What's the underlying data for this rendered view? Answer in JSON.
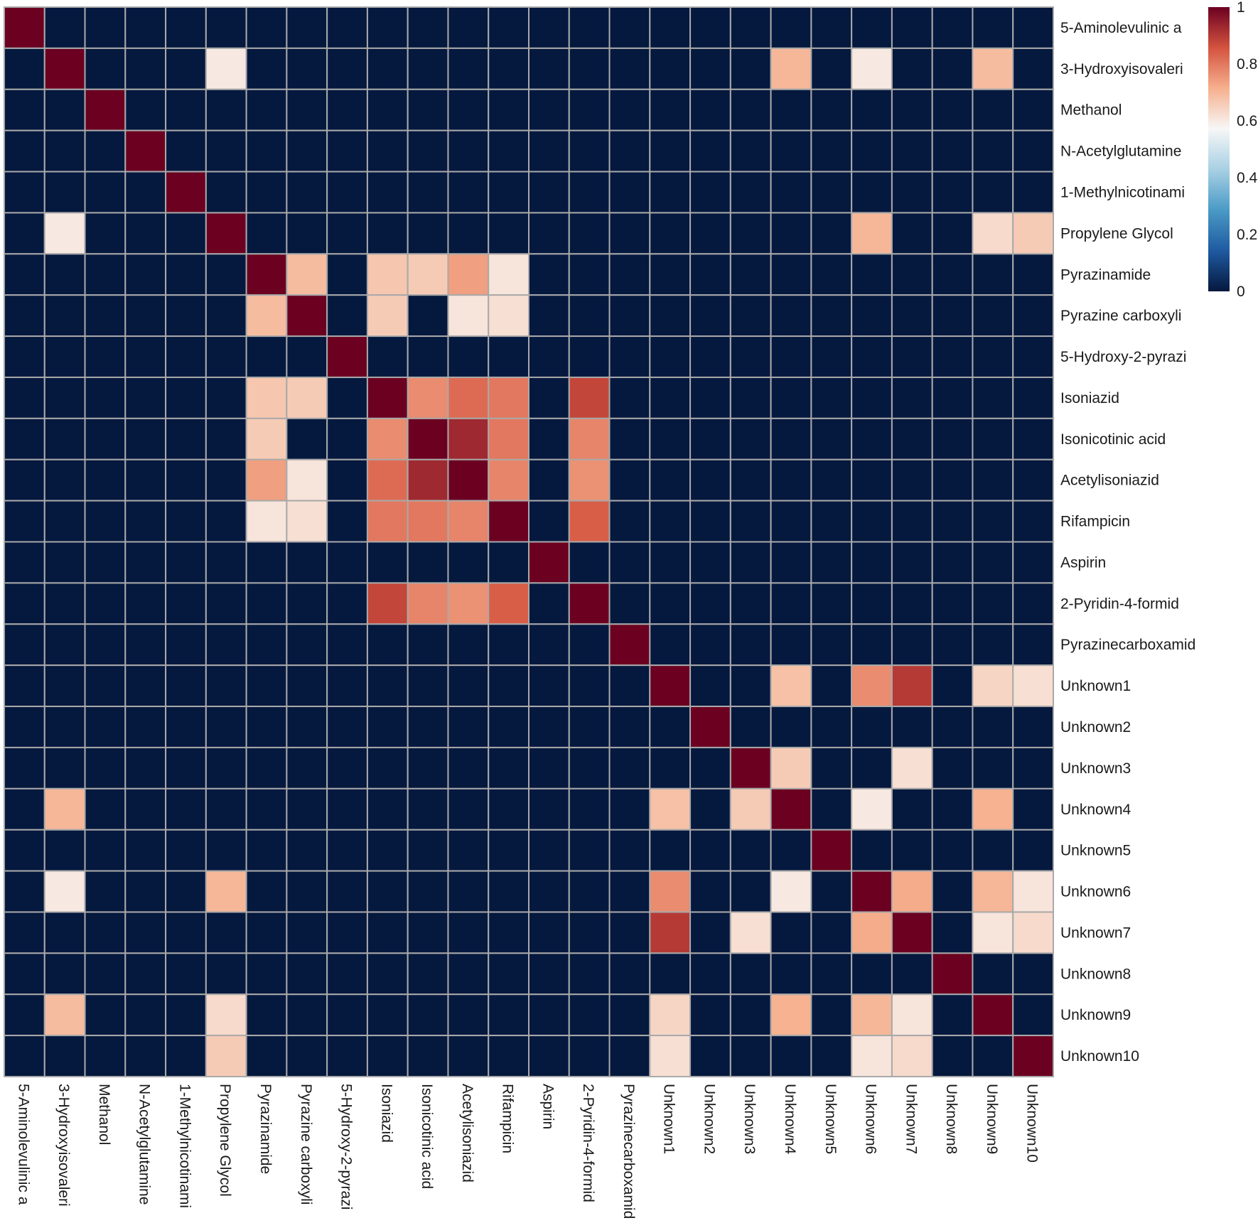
{
  "chart_data": {
    "type": "heatmap",
    "title": "",
    "xlabel": "",
    "ylabel": "",
    "rows": [
      "5-Aminolevulinic a",
      "3-Hydroxyisovaleri",
      "Methanol",
      "N-Acetylglutamine",
      "1-Methylnicotinami",
      "Propylene Glycol",
      "Pyrazinamide",
      "Pyrazine carboxyli",
      "5-Hydroxy-2-pyrazi",
      "Isoniazid",
      "Isonicotinic acid",
      "Acetylisoniazid",
      "Rifampicin",
      "Aspirin",
      "2-Pyridin-4-formid",
      "Pyrazinecarboxamid",
      "Unknown1",
      "Unknown2",
      "Unknown3",
      "Unknown4",
      "Unknown5",
      "Unknown6",
      "Unknown7",
      "Unknown8",
      "Unknown9",
      "Unknown10"
    ],
    "columns": [
      "5-Aminolevulinic a",
      "3-Hydroxyisovaleri",
      "Methanol",
      "N-Acetylglutamine",
      "1-Methylnicotinami",
      "Propylene Glycol",
      "Pyrazinamide",
      "Pyrazine carboxyli",
      "5-Hydroxy-2-pyrazi",
      "Isoniazid",
      "Isonicotinic acid",
      "Acetylisoniazid",
      "Rifampicin",
      "Aspirin",
      "2-Pyridin-4-formid",
      "Pyrazinecarboxamid",
      "Unknown1",
      "Unknown2",
      "Unknown3",
      "Unknown4",
      "Unknown5",
      "Unknown6",
      "Unknown7",
      "Unknown8",
      "Unknown9",
      "Unknown10"
    ],
    "values": [
      [
        1,
        0,
        0,
        0,
        0,
        0,
        0,
        0,
        0,
        0,
        0,
        0,
        0,
        0,
        0,
        0,
        0,
        0,
        0,
        0,
        0,
        0,
        0,
        0,
        0,
        0
      ],
      [
        0,
        1,
        0,
        0,
        0,
        0.6,
        0,
        0,
        0,
        0,
        0,
        0,
        0,
        0,
        0,
        0,
        0,
        0,
        0,
        0.7,
        0,
        0.6,
        0,
        0,
        0.69,
        0
      ],
      [
        0,
        0,
        1,
        0,
        0,
        0,
        0,
        0,
        0,
        0,
        0,
        0,
        0,
        0,
        0,
        0,
        0,
        0,
        0,
        0,
        0,
        0,
        0,
        0,
        0,
        0
      ],
      [
        0,
        0,
        0,
        1,
        0,
        0,
        0,
        0,
        0,
        0,
        0,
        0,
        0,
        0,
        0,
        0,
        0,
        0,
        0,
        0,
        0,
        0,
        0,
        0,
        0,
        0
      ],
      [
        0,
        0,
        0,
        0,
        1,
        0,
        0,
        0,
        0,
        0,
        0,
        0,
        0,
        0,
        0,
        0,
        0,
        0,
        0,
        0,
        0,
        0,
        0,
        0,
        0,
        0
      ],
      [
        0,
        0.6,
        0,
        0,
        0,
        1,
        0,
        0,
        0,
        0,
        0,
        0,
        0,
        0,
        0,
        0,
        0,
        0,
        0,
        0,
        0,
        0.7,
        0,
        0,
        0.63,
        0.66
      ],
      [
        0,
        0,
        0,
        0,
        0,
        0,
        1,
        0.69,
        0,
        0.67,
        0.66,
        0.74,
        0.61,
        0,
        0,
        0,
        0,
        0,
        0,
        0,
        0,
        0,
        0,
        0,
        0,
        0
      ],
      [
        0,
        0,
        0,
        0,
        0,
        0,
        0.69,
        1,
        0,
        0.66,
        0,
        0.61,
        0.62,
        0,
        0,
        0,
        0,
        0,
        0,
        0,
        0,
        0,
        0,
        0,
        0,
        0
      ],
      [
        0,
        0,
        0,
        0,
        0,
        0,
        0,
        0,
        1,
        0,
        0,
        0,
        0,
        0,
        0,
        0,
        0,
        0,
        0,
        0,
        0,
        0,
        0,
        0,
        0,
        0
      ],
      [
        0,
        0,
        0,
        0,
        0,
        0,
        0.67,
        0.66,
        0,
        1,
        0.77,
        0.82,
        0.8,
        0,
        0.88,
        0,
        0,
        0,
        0,
        0,
        0,
        0,
        0,
        0,
        0,
        0
      ],
      [
        0,
        0,
        0,
        0,
        0,
        0,
        0.66,
        0,
        0,
        0.77,
        1,
        0.93,
        0.8,
        0,
        0.78,
        0,
        0,
        0,
        0,
        0,
        0,
        0,
        0,
        0,
        0,
        0
      ],
      [
        0,
        0,
        0,
        0,
        0,
        0,
        0.74,
        0.61,
        0,
        0.82,
        0.93,
        1,
        0.78,
        0,
        0.76,
        0,
        0,
        0,
        0,
        0,
        0,
        0,
        0,
        0,
        0,
        0
      ],
      [
        0,
        0,
        0,
        0,
        0,
        0,
        0.61,
        0.62,
        0,
        0.8,
        0.8,
        0.78,
        1,
        0,
        0.84,
        0,
        0,
        0,
        0,
        0,
        0,
        0,
        0,
        0,
        0,
        0
      ],
      [
        0,
        0,
        0,
        0,
        0,
        0,
        0,
        0,
        0,
        0,
        0,
        0,
        0,
        1,
        0,
        0,
        0,
        0,
        0,
        0,
        0,
        0,
        0,
        0,
        0,
        0
      ],
      [
        0,
        0,
        0,
        0,
        0,
        0,
        0,
        0,
        0,
        0.88,
        0.78,
        0.76,
        0.84,
        0,
        1,
        0,
        0,
        0,
        0,
        0,
        0,
        0,
        0,
        0,
        0,
        0
      ],
      [
        0,
        0,
        0,
        0,
        0,
        0,
        0,
        0,
        0,
        0,
        0,
        0,
        0,
        0,
        0,
        1,
        0,
        0,
        0,
        0,
        0,
        0,
        0,
        0,
        0,
        0
      ],
      [
        0,
        0,
        0,
        0,
        0,
        0,
        0,
        0,
        0,
        0,
        0,
        0,
        0,
        0,
        0,
        0,
        1,
        0,
        0,
        0.68,
        0,
        0.77,
        0.9,
        0,
        0.64,
        0.62
      ],
      [
        0,
        0,
        0,
        0,
        0,
        0,
        0,
        0,
        0,
        0,
        0,
        0,
        0,
        0,
        0,
        0,
        0,
        1,
        0,
        0,
        0,
        0,
        0,
        0,
        0,
        0
      ],
      [
        0,
        0,
        0,
        0,
        0,
        0,
        0,
        0,
        0,
        0,
        0,
        0,
        0,
        0,
        0,
        0,
        0,
        0,
        1,
        0.66,
        0,
        0,
        0.62,
        0,
        0,
        0
      ],
      [
        0,
        0.7,
        0,
        0,
        0,
        0,
        0,
        0,
        0,
        0,
        0,
        0,
        0,
        0,
        0,
        0,
        0.68,
        0,
        0.66,
        1,
        0,
        0.6,
        0,
        0,
        0.71,
        0
      ],
      [
        0,
        0,
        0,
        0,
        0,
        0,
        0,
        0,
        0,
        0,
        0,
        0,
        0,
        0,
        0,
        0,
        0,
        0,
        0,
        0,
        1,
        0,
        0,
        0,
        0,
        0
      ],
      [
        0,
        0.6,
        0,
        0,
        0,
        0.7,
        0,
        0,
        0,
        0,
        0,
        0,
        0,
        0,
        0,
        0,
        0.77,
        0,
        0,
        0.6,
        0,
        1,
        0.72,
        0,
        0.7,
        0.61
      ],
      [
        0,
        0,
        0,
        0,
        0,
        0,
        0,
        0,
        0,
        0,
        0,
        0,
        0,
        0,
        0,
        0,
        0.9,
        0,
        0.62,
        0,
        0,
        0.72,
        1,
        0,
        0.61,
        0.63
      ],
      [
        0,
        0,
        0,
        0,
        0,
        0,
        0,
        0,
        0,
        0,
        0,
        0,
        0,
        0,
        0,
        0,
        0,
        0,
        0,
        0,
        0,
        0,
        0,
        1,
        0,
        0
      ],
      [
        0,
        0.69,
        0,
        0,
        0,
        0.63,
        0,
        0,
        0,
        0,
        0,
        0,
        0,
        0,
        0,
        0,
        0.64,
        0,
        0,
        0.71,
        0,
        0.7,
        0.61,
        0,
        1,
        0
      ],
      [
        0,
        0,
        0,
        0,
        0,
        0.66,
        0,
        0,
        0,
        0,
        0,
        0,
        0,
        0,
        0,
        0,
        0.62,
        0,
        0,
        0,
        0,
        0.61,
        0.63,
        0,
        0,
        1
      ]
    ],
    "zlim": [
      0,
      1
    ],
    "colorbar": {
      "ticks": [
        1,
        0.8,
        0.6,
        0.4,
        0.2,
        0
      ],
      "tick_labels": [
        "1",
        "0.8",
        "0.6",
        "0.4",
        "0.2",
        "0"
      ],
      "stops": [
        "#05183e",
        "#1f5aa1",
        "#4a9ac6",
        "#a8d0e4",
        "#f7f7f7",
        "#f6b08e",
        "#d4533f",
        "#6b0021"
      ]
    },
    "grid": true,
    "grid_color": "#a9a9a9",
    "legend_position": "top-right"
  }
}
